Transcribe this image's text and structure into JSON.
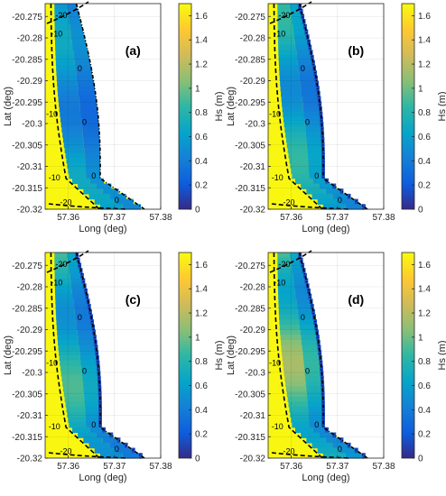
{
  "chart_data": [
    {
      "type": "heatmap",
      "panel_label": "(a)",
      "xlabel": "Long (deg)",
      "ylabel": "Lat (deg)",
      "xlim": [
        57.355,
        57.38
      ],
      "ylim": [
        -20.32,
        -20.272
      ],
      "xticks": [
        "57.36",
        "57.37",
        "57.38"
      ],
      "yticks": [
        "-20.275",
        "-20.28",
        "-20.285",
        "-20.29",
        "-20.295",
        "-20.3",
        "-20.305",
        "-20.31",
        "-20.315",
        "-20.32"
      ],
      "colorbar": {
        "label": "Hs (m)",
        "min": 0,
        "max": 1.7,
        "ticks": [
          "0",
          "0.2",
          "0.4",
          "0.6",
          "0.8",
          "1",
          "1.2",
          "1.4",
          "1.6"
        ]
      },
      "contour_labels": [
        "-20",
        "-10",
        "0",
        "0",
        "0",
        "-10",
        "-10",
        "-20",
        "0"
      ],
      "nearshore_hs": 0.6,
      "grid": true
    },
    {
      "type": "heatmap",
      "panel_label": "(b)",
      "xlabel": "Long (deg)",
      "ylabel": "Lat (deg)",
      "xlim": [
        57.355,
        57.38
      ],
      "ylim": [
        -20.32,
        -20.272
      ],
      "xticks": [
        "57.36",
        "57.37",
        "57.38"
      ],
      "yticks": [
        "-20.275",
        "-20.28",
        "-20.285",
        "-20.29",
        "-20.295",
        "-20.3",
        "-20.305",
        "-20.31",
        "-20.315",
        "-20.32"
      ],
      "colorbar": {
        "label": "Hs (m)",
        "min": 0,
        "max": 1.7,
        "ticks": [
          "0",
          "0.2",
          "0.4",
          "0.6",
          "0.8",
          "1",
          "1.2",
          "1.4",
          "1.6"
        ]
      },
      "contour_labels": [
        "-20",
        "-10",
        "0",
        "0",
        "0",
        "-10",
        "-10",
        "-20",
        "0"
      ],
      "nearshore_hs": 0.75,
      "grid": true
    },
    {
      "type": "heatmap",
      "panel_label": "(c)",
      "xlabel": "Long (deg)",
      "ylabel": "Lat (deg)",
      "xlim": [
        57.355,
        57.38
      ],
      "ylim": [
        -20.32,
        -20.272
      ],
      "xticks": [
        "57.36",
        "57.37",
        "57.38"
      ],
      "yticks": [
        "-20.275",
        "-20.28",
        "-20.285",
        "-20.29",
        "-20.295",
        "-20.3",
        "-20.305",
        "-20.31",
        "-20.315",
        "-20.32"
      ],
      "colorbar": {
        "label": "Hs (m)",
        "min": 0,
        "max": 1.7,
        "ticks": [
          "0",
          "0.2",
          "0.4",
          "0.6",
          "0.8",
          "1",
          "1.2",
          "1.4",
          "1.6"
        ]
      },
      "contour_labels": [
        "-20",
        "-10",
        "0",
        "0",
        "0",
        "-10",
        "-10",
        "-20",
        "0"
      ],
      "nearshore_hs": 0.8,
      "grid": true
    },
    {
      "type": "heatmap",
      "panel_label": "(d)",
      "xlabel": "Long (deg)",
      "ylabel": "Lat (deg)",
      "xlim": [
        57.355,
        57.38
      ],
      "ylim": [
        -20.32,
        -20.272
      ],
      "xticks": [
        "57.36",
        "57.37",
        "57.38"
      ],
      "yticks": [
        "-20.275",
        "-20.28",
        "-20.285",
        "-20.29",
        "-20.295",
        "-20.3",
        "-20.305",
        "-20.31",
        "-20.315",
        "-20.32"
      ],
      "colorbar": {
        "label": "Hs (m)",
        "min": 0,
        "max": 1.7,
        "ticks": [
          "0",
          "0.2",
          "0.4",
          "0.6",
          "0.8",
          "1",
          "1.2",
          "1.4",
          "1.6"
        ]
      },
      "contour_labels": [
        "-20",
        "-10",
        "0",
        "0",
        "0",
        "-10",
        "-10",
        "-20",
        "0"
      ],
      "nearshore_hs": 1.0,
      "grid": true
    }
  ]
}
